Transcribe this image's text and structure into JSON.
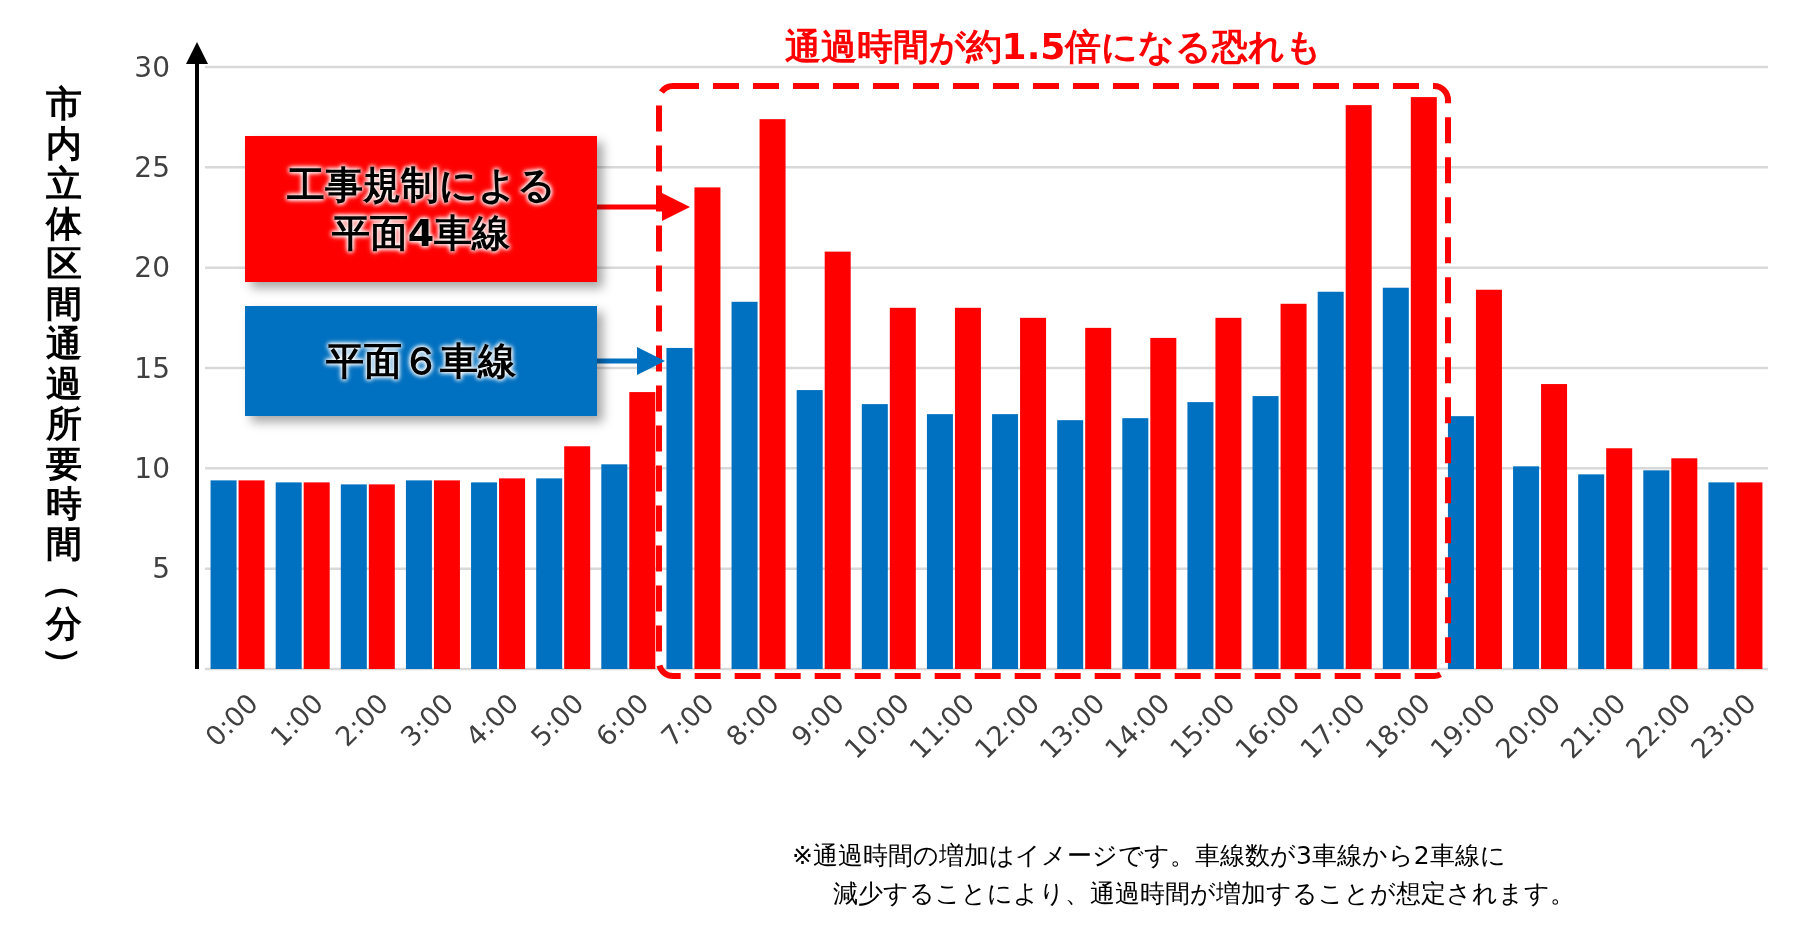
{
  "chart_data": {
    "type": "bar",
    "ylabel": "市内立体区間通過所要時間（分）",
    "categories": [
      "0:00",
      "1:00",
      "2:00",
      "3:00",
      "4:00",
      "5:00",
      "6:00",
      "7:00",
      "8:00",
      "9:00",
      "10:00",
      "11:00",
      "12:00",
      "13:00",
      "14:00",
      "15:00",
      "16:00",
      "17:00",
      "18:00",
      "19:00",
      "20:00",
      "21:00",
      "22:00",
      "23:00"
    ],
    "series": [
      {
        "name": "平面６車線",
        "color": "#0070c0",
        "values": [
          9.4,
          9.3,
          9.2,
          9.4,
          9.3,
          9.5,
          10.2,
          16.0,
          18.3,
          13.9,
          13.2,
          12.7,
          12.7,
          12.4,
          12.5,
          13.3,
          13.6,
          18.8,
          19.0,
          12.6,
          10.1,
          9.7,
          9.9,
          9.3
        ]
      },
      {
        "name": "工事規制による平面4車線",
        "color": "#ff0000",
        "values": [
          9.4,
          9.3,
          9.2,
          9.4,
          9.5,
          11.1,
          13.8,
          24.0,
          27.4,
          20.8,
          18.0,
          18.0,
          17.5,
          17.0,
          16.5,
          17.5,
          18.2,
          28.1,
          28.5,
          18.9,
          14.2,
          11.0,
          10.5,
          9.3
        ]
      }
    ],
    "ylim": [
      0,
      30
    ],
    "yticks": [
      {
        "value": 0,
        "label": null
      },
      5,
      10,
      15,
      20,
      25,
      30
    ],
    "grid": "y",
    "legend": "top left",
    "title": "通過時間が約1.5倍になる恐れも",
    "annotations": [
      "※通過時間の増加はイメージです。車線数が3車線から2車線に",
      "減少することにより、通過時間が増加することが想定されます。"
    ]
  }
}
